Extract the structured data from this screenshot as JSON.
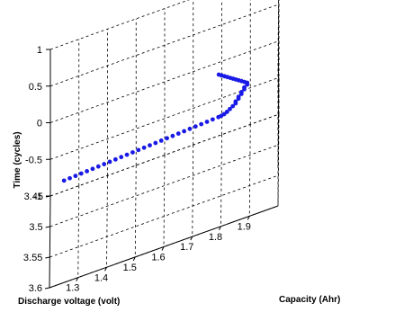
{
  "chart_data": {
    "type": "scatter",
    "title": "",
    "xlabel": "Capacity (Ahr)",
    "ylabel": "Discharge voltage (volt)",
    "zlabel": "Time (cycles)",
    "xlim": [
      1.2,
      2.0
    ],
    "ylim": [
      3.45,
      3.6
    ],
    "zlim": [
      -1,
      1
    ],
    "xticks": [
      "1.3",
      "1.4",
      "1.5",
      "1.6",
      "1.7",
      "1.8",
      "1.9"
    ],
    "yticks": [
      "3.45",
      "3.5",
      "3.55",
      "3.6"
    ],
    "zticks": [
      "-1",
      "-0.5",
      "0",
      "0.5",
      "1"
    ],
    "grid": true,
    "marker_color": "#1a1ae6",
    "series": [
      {
        "points": [
          [
            1.25,
            3.553,
            0
          ],
          [
            1.27,
            3.5525,
            0
          ],
          [
            1.29,
            3.552,
            0
          ],
          [
            1.31,
            3.5515,
            0
          ],
          [
            1.33,
            3.551,
            0
          ],
          [
            1.35,
            3.5505,
            0
          ],
          [
            1.37,
            3.55,
            0
          ],
          [
            1.39,
            3.5495,
            0
          ],
          [
            1.41,
            3.549,
            0
          ],
          [
            1.43,
            3.5485,
            0
          ],
          [
            1.45,
            3.548,
            0
          ],
          [
            1.47,
            3.5475,
            0
          ],
          [
            1.49,
            3.547,
            0
          ],
          [
            1.51,
            3.5465,
            0
          ],
          [
            1.53,
            3.546,
            0
          ],
          [
            1.55,
            3.5455,
            0
          ],
          [
            1.57,
            3.545,
            0
          ],
          [
            1.59,
            3.5445,
            0
          ],
          [
            1.61,
            3.544,
            0
          ],
          [
            1.63,
            3.5435,
            0
          ],
          [
            1.65,
            3.543,
            0
          ],
          [
            1.67,
            3.5425,
            0
          ],
          [
            1.69,
            3.542,
            0
          ],
          [
            1.71,
            3.5415,
            0
          ],
          [
            1.73,
            3.541,
            0
          ],
          [
            1.75,
            3.5405,
            0
          ],
          [
            1.77,
            3.54,
            0
          ],
          [
            1.79,
            3.5395,
            0
          ],
          [
            1.8,
            3.539,
            0
          ],
          [
            1.81,
            3.538,
            0
          ],
          [
            1.82,
            3.536,
            0
          ],
          [
            1.83,
            3.533,
            0
          ],
          [
            1.84,
            3.53,
            0
          ],
          [
            1.85,
            3.527,
            0
          ],
          [
            1.85,
            3.524,
            0
          ],
          [
            1.86,
            3.521,
            0
          ],
          [
            1.86,
            3.518,
            0
          ],
          [
            1.87,
            3.515,
            0
          ],
          [
            1.87,
            3.512,
            0
          ],
          [
            1.88,
            3.509,
            0
          ],
          [
            1.88,
            3.506,
            0
          ],
          [
            1.89,
            3.503,
            0
          ],
          [
            1.89,
            3.5,
            0
          ],
          [
            1.88,
            3.497,
            0
          ],
          [
            1.87,
            3.494,
            0
          ],
          [
            1.86,
            3.491,
            0
          ],
          [
            1.85,
            3.488,
            0
          ],
          [
            1.84,
            3.485,
            0
          ],
          [
            1.83,
            3.482,
            0
          ],
          [
            1.82,
            3.479,
            0
          ],
          [
            1.81,
            3.476,
            0
          ],
          [
            1.8,
            3.473,
            0
          ],
          [
            1.79,
            3.47,
            0
          ]
        ]
      }
    ]
  }
}
